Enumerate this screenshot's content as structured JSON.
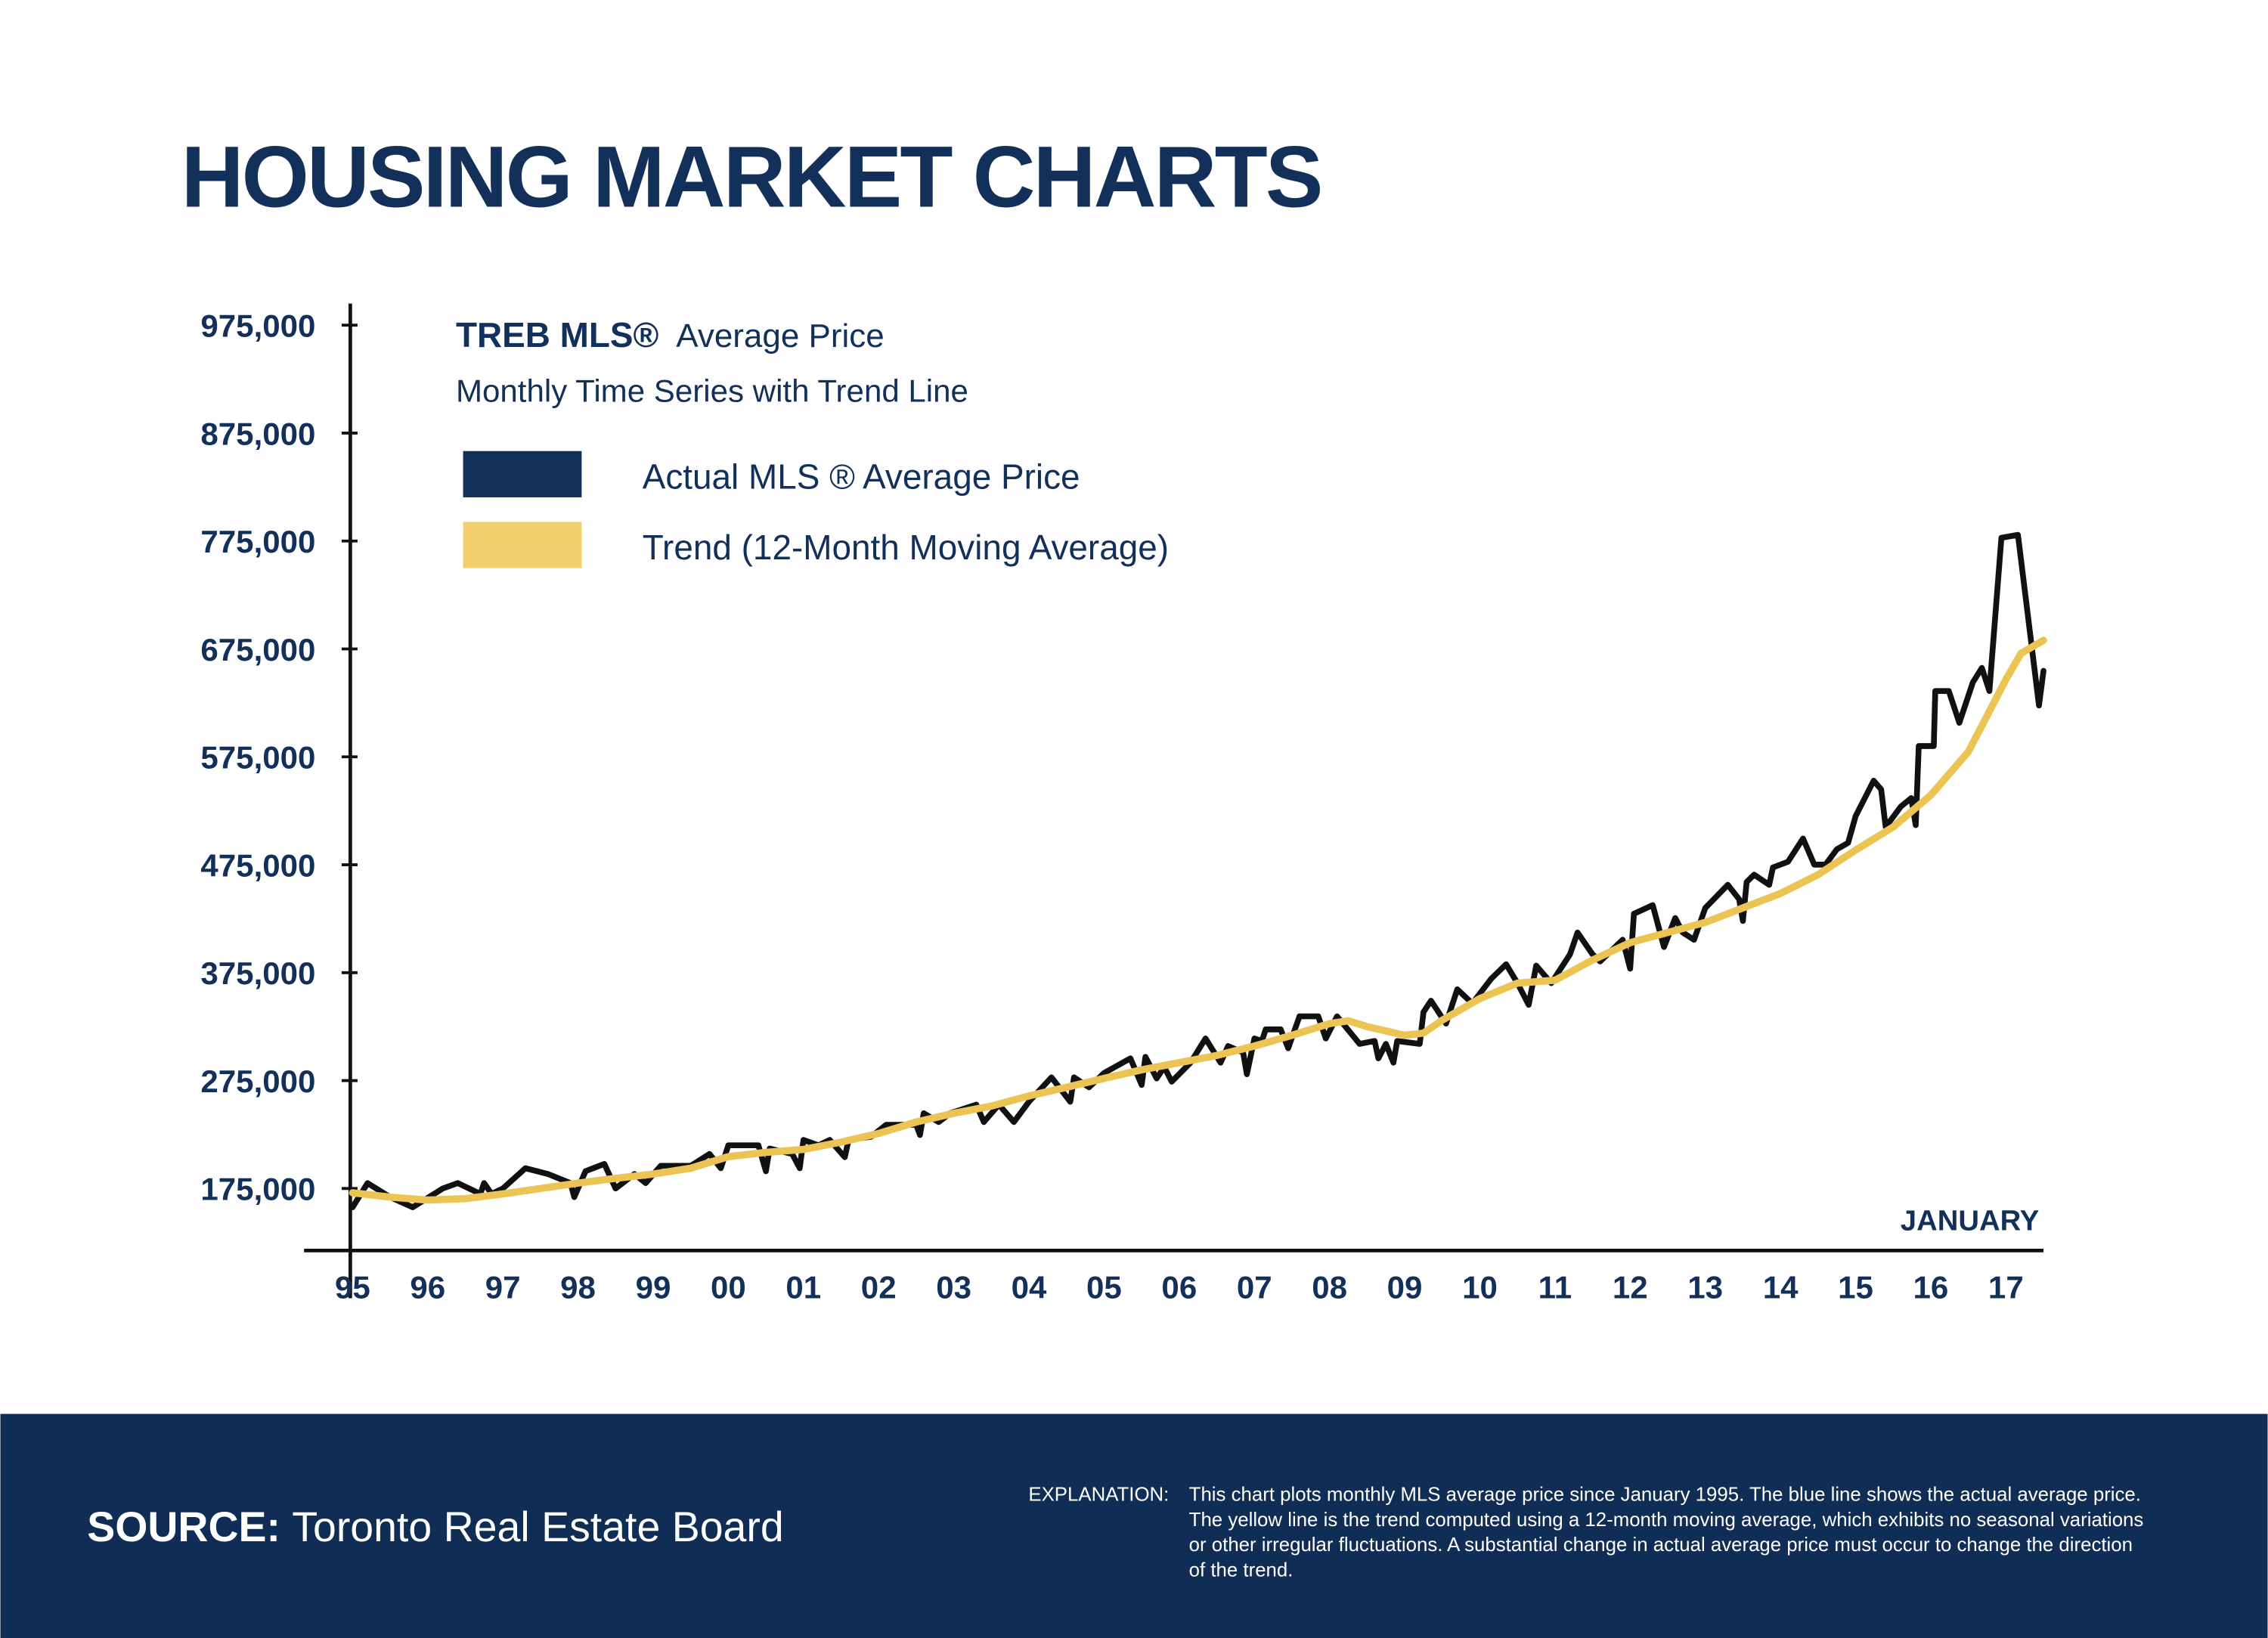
{
  "chart_data": {
    "type": "line",
    "title": "HOUSING MARKET CHARTS",
    "legend_title": "TREB MLS®",
    "legend_title_suffix": "Average Price",
    "subtitle": "Monthly Time Series with Trend Line",
    "x_annotation": "JANUARY",
    "xlim": [
      1994.15,
      2017.5
    ],
    "ylim": [
      117500,
      995000
    ],
    "xticks": [
      {
        "value": 1995,
        "label": "95"
      },
      {
        "value": 1996,
        "label": "96"
      },
      {
        "value": 1997,
        "label": "97"
      },
      {
        "value": 1998,
        "label": "98"
      },
      {
        "value": 1999,
        "label": "99"
      },
      {
        "value": 2000,
        "label": "00"
      },
      {
        "value": 2001,
        "label": "01"
      },
      {
        "value": 2002,
        "label": "02"
      },
      {
        "value": 2003,
        "label": "03"
      },
      {
        "value": 2004,
        "label": "04"
      },
      {
        "value": 2005,
        "label": "05"
      },
      {
        "value": 2006,
        "label": "06"
      },
      {
        "value": 2007,
        "label": "07"
      },
      {
        "value": 2008,
        "label": "08"
      },
      {
        "value": 2009,
        "label": "09"
      },
      {
        "value": 2010,
        "label": "10"
      },
      {
        "value": 2011,
        "label": "11"
      },
      {
        "value": 2012,
        "label": "12"
      },
      {
        "value": 2013,
        "label": "13"
      },
      {
        "value": 2014,
        "label": "14"
      },
      {
        "value": 2015,
        "label": "15"
      },
      {
        "value": 2016,
        "label": "16"
      },
      {
        "value": 2017,
        "label": "17"
      }
    ],
    "yticks": [
      {
        "value": 175000,
        "label": "175,000"
      },
      {
        "value": 275000,
        "label": "275,000"
      },
      {
        "value": 375000,
        "label": "375,000"
      },
      {
        "value": 475000,
        "label": "475,000"
      },
      {
        "value": 575000,
        "label": "575,000"
      },
      {
        "value": 675000,
        "label": "675,000"
      },
      {
        "value": 775000,
        "label": "775,000"
      },
      {
        "value": 875000,
        "label": "875,000"
      },
      {
        "value": 975000,
        "label": "975,000"
      }
    ],
    "series": [
      {
        "name": "Actual MLS ® Average Price",
        "color": "#111111",
        "swatch_color": "#12305a",
        "x": [
          1995.0,
          1995.2,
          1995.5,
          1995.8,
          1996.2,
          1996.4,
          1996.7,
          1996.75,
          1996.85,
          1997.0,
          1997.3,
          1997.6,
          1997.9,
          1997.95,
          1998.1,
          1998.35,
          1998.5,
          1998.75,
          1998.9,
          1999.1,
          1999.5,
          1999.75,
          1999.9,
          2000.0,
          2000.4,
          2000.5,
          2000.55,
          2000.85,
          2000.95,
          2001.0,
          2001.2,
          2001.35,
          2001.55,
          2001.6,
          2001.9,
          2002.1,
          2002.5,
          2002.55,
          2002.6,
          2002.8,
          2002.95,
          2003.3,
          2003.4,
          2003.6,
          2003.8,
          2004.0,
          2004.3,
          2004.55,
          2004.6,
          2004.8,
          2005.0,
          2005.35,
          2005.5,
          2005.55,
          2005.7,
          2005.8,
          2005.9,
          2006.15,
          2006.35,
          2006.55,
          2006.65,
          2006.85,
          2006.9,
          2007.0,
          2007.1,
          2007.15,
          2007.35,
          2007.45,
          2007.6,
          2007.85,
          2007.95,
          2008.1,
          2008.4,
          2008.6,
          2008.65,
          2008.75,
          2008.85,
          2008.9,
          2009.2,
          2009.25,
          2009.35,
          2009.55,
          2009.7,
          2009.9,
          2010.15,
          2010.35,
          2010.5,
          2010.65,
          2010.75,
          2010.95,
          2011.2,
          2011.3,
          2011.5,
          2011.6,
          2011.9,
          2012.0,
          2012.05,
          2012.3,
          2012.45,
          2012.6,
          2012.7,
          2012.85,
          2013.0,
          2013.3,
          2013.45,
          2013.5,
          2013.55,
          2013.65,
          2013.85,
          2013.9,
          2014.1,
          2014.3,
          2014.45,
          2014.6,
          2014.75,
          2014.9,
          2015.0,
          2015.24,
          2015.34,
          2015.4,
          2015.6,
          2015.74,
          2015.8,
          2015.84,
          2016.04,
          2016.06,
          2016.24,
          2016.38,
          2016.56,
          2016.68,
          2016.78,
          2016.94,
          2017.16,
          2017.44,
          2017.5
        ],
        "values": [
          157600,
          180000,
          167000,
          157600,
          175000,
          180000,
          170000,
          180000,
          170000,
          175000,
          193800,
          188400,
          180000,
          167000,
          191000,
          197800,
          175000,
          188400,
          180000,
          196000,
          196000,
          207000,
          193800,
          215000,
          215000,
          191000,
          212000,
          207000,
          193800,
          220000,
          215000,
          220000,
          204000,
          220000,
          223000,
          234000,
          234000,
          224600,
          244700,
          236600,
          244700,
          252700,
          236600,
          252700,
          236600,
          255400,
          278000,
          255400,
          278000,
          268800,
          282000,
          295600,
          271000,
          297000,
          277000,
          287600,
          274000,
          291600,
          314000,
          291600,
          307000,
          301000,
          280900,
          314000,
          311700,
          322400,
          322400,
          305000,
          334500,
          334500,
          314000,
          334500,
          309000,
          311700,
          295600,
          309000,
          291600,
          311700,
          309000,
          338500,
          349000,
          327800,
          359600,
          346500,
          369300,
          382800,
          365300,
          345200,
          381500,
          365300,
          392000,
          412200,
          392000,
          385400,
          405500,
          378700,
          429600,
          437600,
          398800,
          425600,
          412200,
          405500,
          435000,
          456400,
          443000,
          422900,
          459000,
          465800,
          456400,
          472500,
          477800,
          499300,
          475100,
          475100,
          489300,
          495300,
          520000,
          552900,
          544800,
          510000,
          528800,
          536800,
          511700,
          585000,
          585000,
          636000,
          636000,
          606500,
          644000,
          657400,
          636000,
          778000,
          780700,
          622600,
          654700
        ]
      },
      {
        "name": "Trend (12-Month Moving Average)",
        "color": "#ecc454",
        "swatch_color": "#f0cf6c",
        "x": [
          1995.0,
          1995.5,
          1996.0,
          1996.5,
          1997.0,
          1997.5,
          1998.0,
          1998.5,
          1999.0,
          1999.5,
          2000.0,
          2000.5,
          2001.0,
          2001.5,
          2002.0,
          2002.5,
          2003.0,
          2003.5,
          2004.0,
          2004.5,
          2005.0,
          2005.5,
          2006.0,
          2006.5,
          2007.0,
          2007.5,
          2008.0,
          2008.25,
          2008.5,
          2009.0,
          2009.25,
          2009.5,
          2010.0,
          2010.5,
          2011.0,
          2011.5,
          2012.0,
          2012.5,
          2013.0,
          2013.5,
          2014.0,
          2014.5,
          2015.0,
          2015.5,
          2016.0,
          2016.5,
          2017.0,
          2017.2,
          2017.5
        ],
        "values": [
          171000,
          167000,
          164300,
          165600,
          170000,
          175000,
          180000,
          184400,
          188400,
          193800,
          204500,
          208500,
          211200,
          218000,
          226000,
          236600,
          244700,
          251400,
          260800,
          268800,
          277000,
          285000,
          291600,
          298300,
          307000,
          317000,
          327800,
          330400,
          325000,
          317000,
          319000,
          331000,
          351000,
          365300,
          368000,
          386700,
          402800,
          412200,
          421600,
          435000,
          448400,
          465800,
          488600,
          510000,
          539500,
          579700,
          646700,
          670800,
          683000
        ]
      }
    ]
  },
  "footer": {
    "source_label": "SOURCE:",
    "source": "Toronto Real Estate Board",
    "explanation_label": "EXPLANATION:",
    "explanation": [
      "This chart plots monthly MLS average price since January 1995. The blue line shows the actual average price.",
      "The yellow line is the trend computed using a 12-month moving average, which exhibits no seasonal variations",
      "or other irregular fluctuations. A substantial change in actual average price must occur to change the direction",
      "of the trend."
    ]
  }
}
